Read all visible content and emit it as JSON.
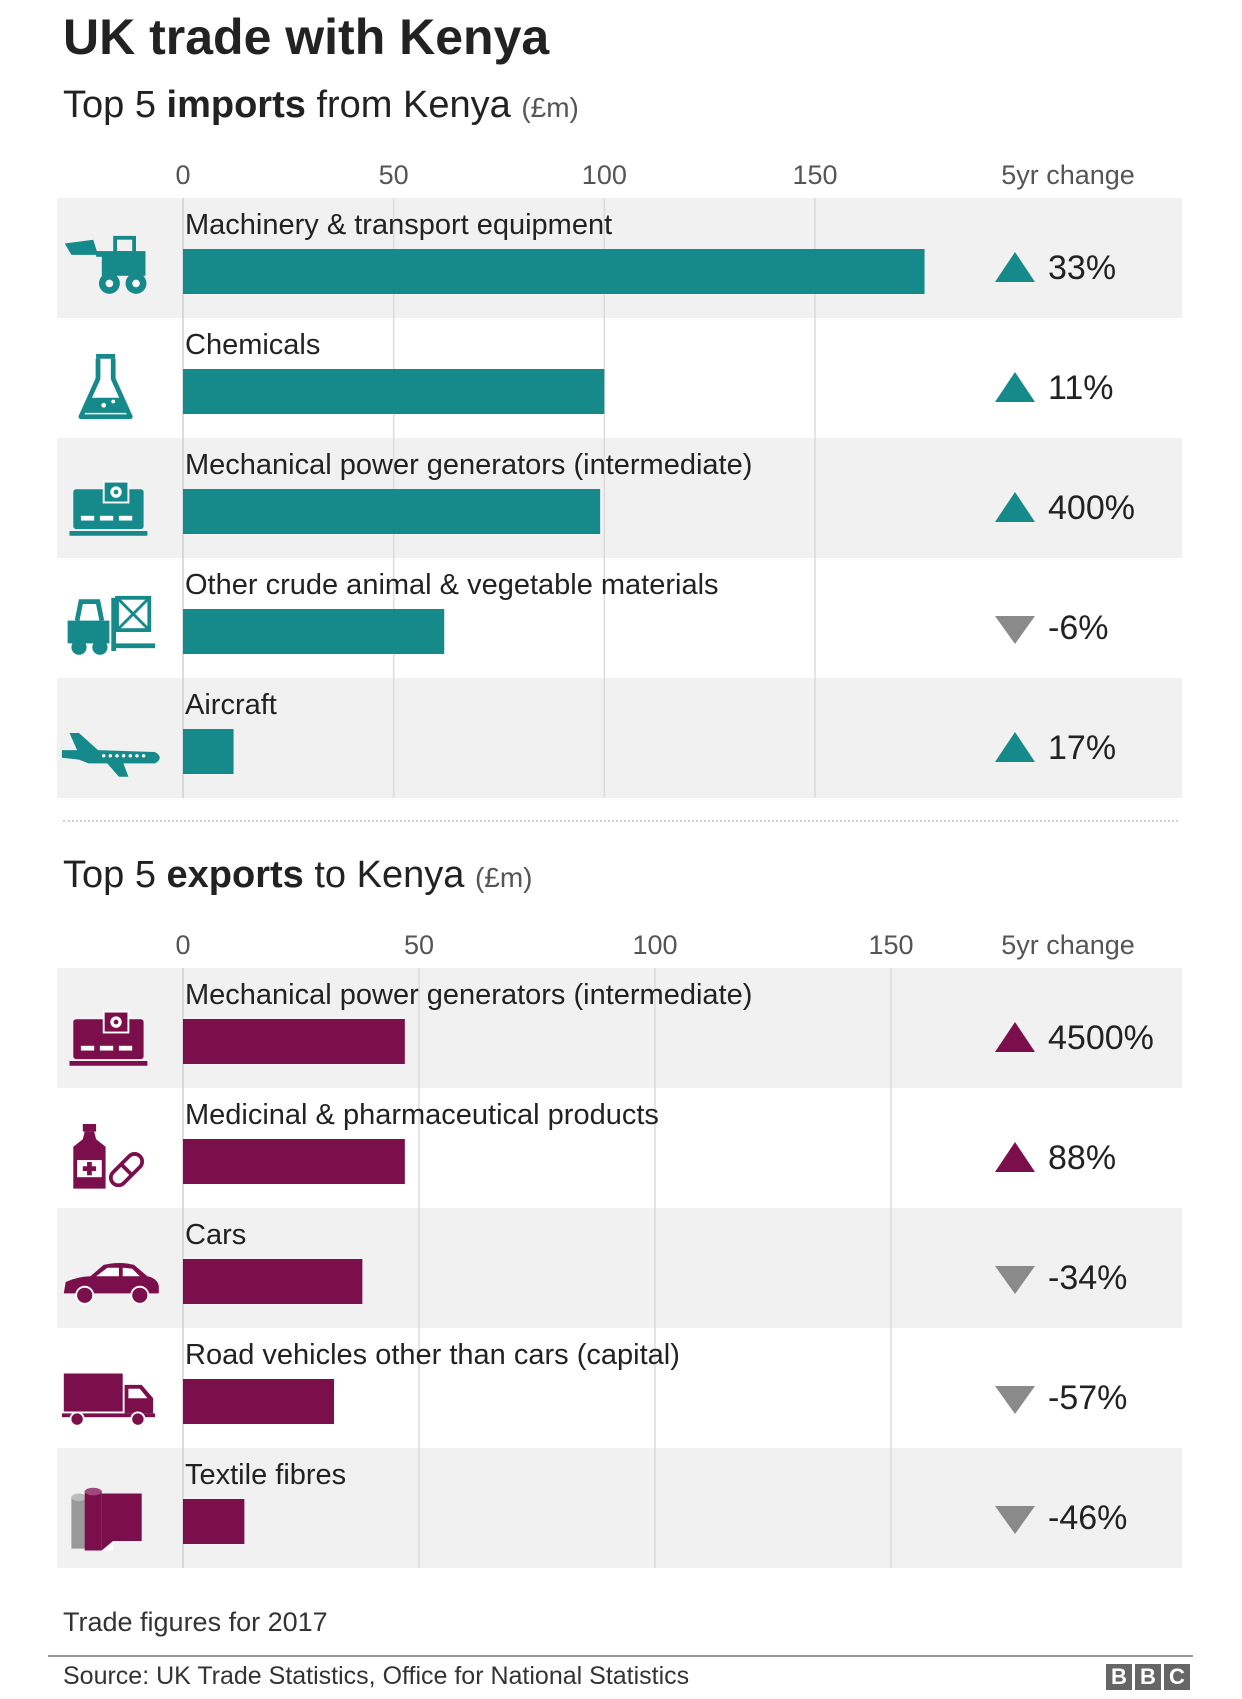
{
  "title": "UK trade with Kenya",
  "imports_heading": {
    "pre": "Top 5 ",
    "bold": "imports",
    "post": " from Kenya ",
    "unit": "(£m)"
  },
  "exports_heading": {
    "pre": "Top 5 ",
    "bold": "exports",
    "post": " to Kenya ",
    "unit": "(£m)"
  },
  "change_header": "5yr change",
  "footnote": "Trade figures for 2017",
  "source": "Source: UK Trade Statistics, Office for National Statistics",
  "logo_letters": [
    "B",
    "B",
    "C"
  ],
  "colors": {
    "imports": "#16898a",
    "exports": "#7b0f4c",
    "down": "#8a8a8a",
    "row_shade": "#f1f1f1"
  },
  "chart_data": [
    {
      "type": "bar",
      "orientation": "horizontal",
      "xlim": [
        0,
        200
      ],
      "ticks": [
        0,
        50,
        100,
        150
      ],
      "categories": [
        "Machinery & transport equipment",
        "Chemicals",
        "Mechanical power generators (intermediate)",
        "Other crude animal & vegetable materials",
        "Aircraft"
      ],
      "values": [
        176,
        100,
        99,
        62,
        12
      ],
      "change": [
        "33%",
        "11%",
        "400%",
        "-6%",
        "17%"
      ],
      "direction": [
        "up",
        "up",
        "up",
        "down",
        "up"
      ],
      "icons": [
        "tractor-icon",
        "flask-icon",
        "generator-icon",
        "forklift-icon",
        "aircraft-icon"
      ]
    },
    {
      "type": "bar",
      "orientation": "horizontal",
      "xlim": [
        0,
        175
      ],
      "ticks": [
        0,
        50,
        100,
        150
      ],
      "categories": [
        "Mechanical power generators (intermediate)",
        "Medicinal & pharmaceutical products",
        "Cars",
        "Road vehicles other than cars (capital)",
        "Textile fibres"
      ],
      "values": [
        47,
        47,
        38,
        32,
        13
      ],
      "change": [
        "4500%",
        "88%",
        "-34%",
        "-57%",
        "-46%"
      ],
      "direction": [
        "up",
        "up",
        "down",
        "down",
        "down"
      ],
      "icons": [
        "generator-icon",
        "medicine-icon",
        "car-icon",
        "truck-icon",
        "textile-icon"
      ]
    }
  ]
}
